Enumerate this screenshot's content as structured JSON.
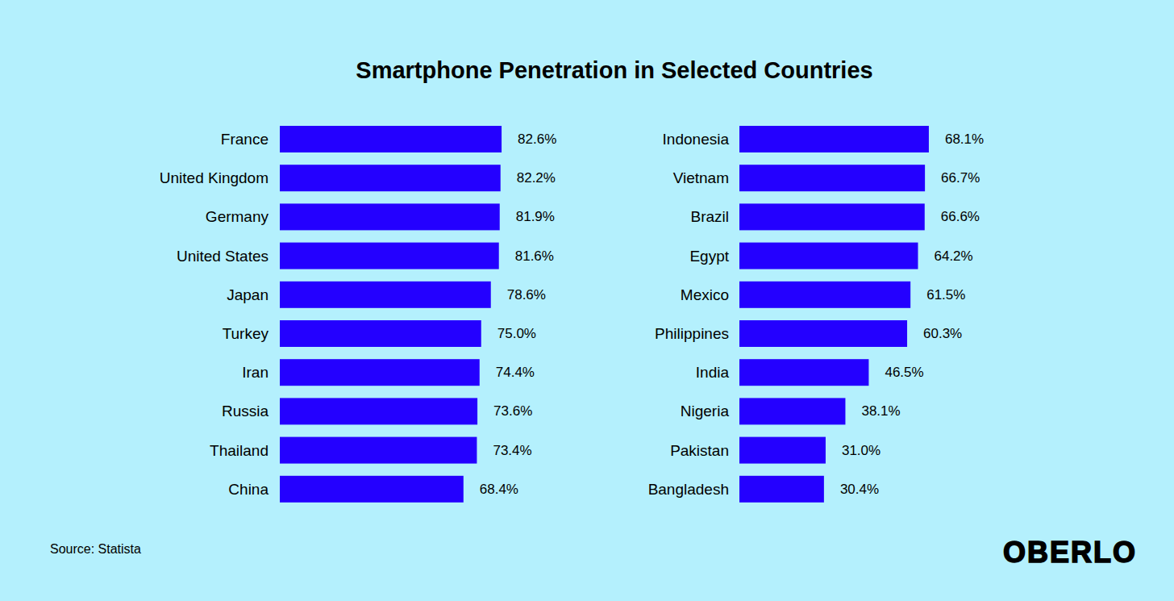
{
  "chart_data": [
    {
      "type": "bar",
      "title": "Smartphone Penetration in Selected Countries",
      "orientation": "horizontal",
      "categories": [
        "France",
        "United Kingdom",
        "Germany",
        "United States",
        "Japan",
        "Turkey",
        "Iran",
        "Russia",
        "Thailand",
        "China"
      ],
      "values": [
        82.6,
        82.2,
        81.9,
        81.6,
        78.6,
        75.0,
        74.4,
        73.6,
        73.4,
        68.4
      ],
      "value_labels": [
        "82.6%",
        "82.2%",
        "81.9%",
        "81.6%",
        "78.6%",
        "75.0%",
        "74.4%",
        "73.6%",
        "73.4%",
        "68.4%"
      ],
      "color": "#2400ff",
      "xlim": [
        0,
        100
      ],
      "data_labels": true,
      "tick_labels": "y",
      "annotations": [
        "Source: Statista",
        "OBERLO"
      ]
    },
    {
      "type": "bar",
      "orientation": "horizontal",
      "categories": [
        "Indonesia",
        "Vietnam",
        "Brazil",
        "Egypt",
        "Mexico",
        "Philippines",
        "India",
        "Nigeria",
        "Pakistan",
        "Bangladesh"
      ],
      "values": [
        68.1,
        66.7,
        66.6,
        64.2,
        61.5,
        60.3,
        46.5,
        38.1,
        31.0,
        30.4
      ],
      "value_labels": [
        "68.1%",
        "66.7%",
        "66.6%",
        "64.2%",
        "61.5%",
        "60.3%",
        "46.5%",
        "38.1%",
        "31.0%",
        "30.4%"
      ],
      "color": "#2400ff",
      "xlim": [
        0,
        100
      ],
      "data_labels": true,
      "tick_labels": "y"
    }
  ]
}
